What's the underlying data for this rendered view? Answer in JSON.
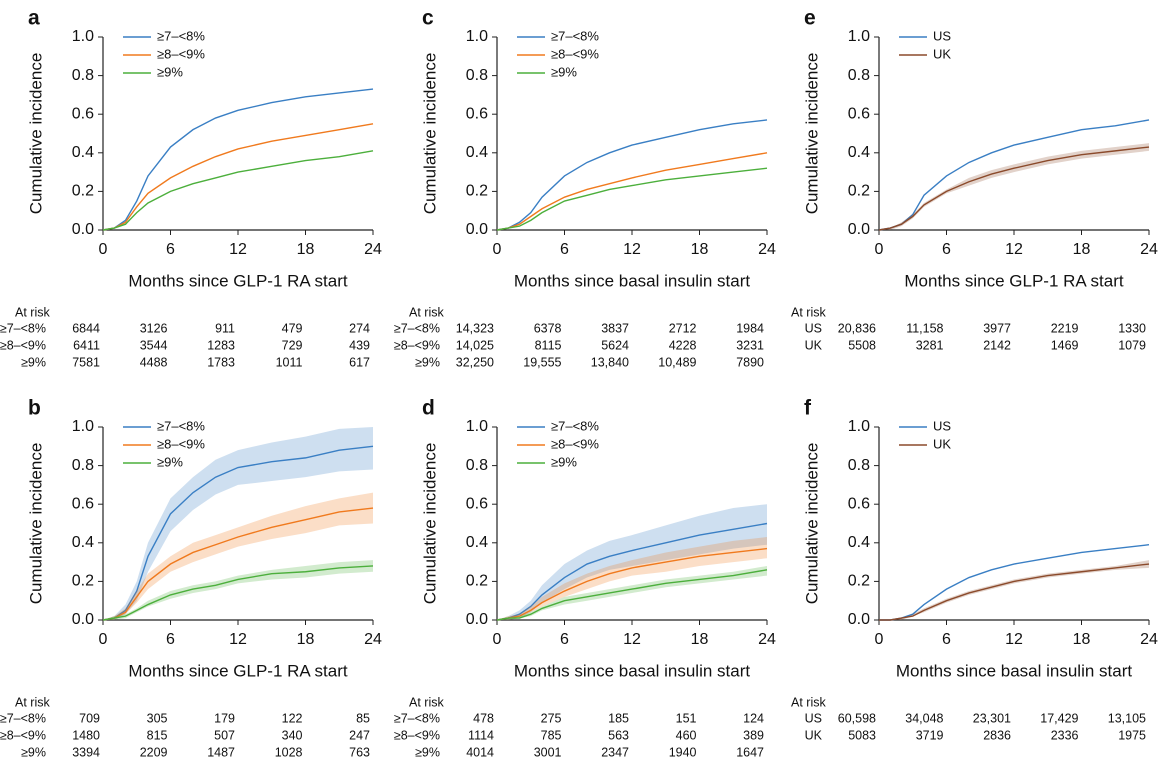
{
  "chart_data": [
    {
      "type": "line",
      "panel_label": "a",
      "ylabel": "Cumulative incidence",
      "xlabel": "Months since GLP-1 RA start",
      "x": [
        0,
        1,
        2,
        3,
        4,
        6,
        8,
        10,
        12,
        15,
        18,
        21,
        24
      ],
      "xlim": [
        0,
        24
      ],
      "ylim": [
        0,
        1
      ],
      "xticks": [
        0,
        6,
        12,
        18,
        24
      ],
      "yticks": [
        {
          "value": 0,
          "label": "0.0"
        },
        0.2,
        0.4,
        0.6,
        0.8,
        {
          "value": 1,
          "label": "1.0"
        }
      ],
      "series": [
        {
          "name": "≥7–<8%",
          "color": "#3a7fc4",
          "values": [
            0,
            0.01,
            0.05,
            0.15,
            0.28,
            0.43,
            0.52,
            0.58,
            0.62,
            0.66,
            0.69,
            0.71,
            0.73
          ]
        },
        {
          "name": "≥8–<9%",
          "color": "#f07a1e",
          "values": [
            0,
            0.01,
            0.04,
            0.12,
            0.19,
            0.27,
            0.33,
            0.38,
            0.42,
            0.46,
            0.49,
            0.52,
            0.55
          ]
        },
        {
          "name": "≥9%",
          "color": "#4caf3c",
          "values": [
            0,
            0.01,
            0.03,
            0.09,
            0.14,
            0.2,
            0.24,
            0.27,
            0.3,
            0.33,
            0.36,
            0.38,
            0.41
          ]
        }
      ],
      "at_risk": {
        "label": "At risk",
        "rows": [
          {
            "name": "≥7–<8%",
            "values": [
              "6844",
              "3126",
              "911",
              "479",
              "274"
            ]
          },
          {
            "name": "≥8–<9%",
            "values": [
              "6411",
              "3544",
              "1283",
              "729",
              "439"
            ]
          },
          {
            "name": "≥9%",
            "values": [
              "7581",
              "4488",
              "1783",
              "1011",
              "617"
            ]
          }
        ]
      }
    },
    {
      "type": "line",
      "panel_label": "c",
      "ylabel": "Cumulative incidence",
      "xlabel": "Months since basal insulin start",
      "x": [
        0,
        1,
        2,
        3,
        4,
        6,
        8,
        10,
        12,
        15,
        18,
        21,
        24
      ],
      "xlim": [
        0,
        24
      ],
      "ylim": [
        0,
        1
      ],
      "xticks": [
        0,
        6,
        12,
        18,
        24
      ],
      "yticks": [
        {
          "value": 0,
          "label": "0.0"
        },
        0.2,
        0.4,
        0.6,
        0.8,
        {
          "value": 1,
          "label": "1.0"
        }
      ],
      "series": [
        {
          "name": "≥7–<8%",
          "color": "#3a7fc4",
          "values": [
            0,
            0.01,
            0.04,
            0.09,
            0.17,
            0.28,
            0.35,
            0.4,
            0.44,
            0.48,
            0.52,
            0.55,
            0.57
          ]
        },
        {
          "name": "≥8–<9%",
          "color": "#f07a1e",
          "values": [
            0,
            0.01,
            0.03,
            0.07,
            0.11,
            0.17,
            0.21,
            0.24,
            0.27,
            0.31,
            0.34,
            0.37,
            0.4
          ]
        },
        {
          "name": "≥9%",
          "color": "#4caf3c",
          "values": [
            0,
            0.01,
            0.02,
            0.05,
            0.09,
            0.15,
            0.18,
            0.21,
            0.23,
            0.26,
            0.28,
            0.3,
            0.32
          ]
        }
      ],
      "at_risk": {
        "label": "At risk",
        "rows": [
          {
            "name": "≥7–<8%",
            "values": [
              "14,323",
              "6378",
              "3837",
              "2712",
              "1984"
            ]
          },
          {
            "name": "≥8–<9%",
            "values": [
              "14,025",
              "8115",
              "5624",
              "4228",
              "3231"
            ]
          },
          {
            "name": "≥9%",
            "values": [
              "32,250",
              "19,555",
              "13,840",
              "10,489",
              "7890"
            ]
          }
        ]
      }
    },
    {
      "type": "line",
      "panel_label": "e",
      "ylabel": "Cumulative incidence",
      "xlabel": "Months since GLP-1 RA start",
      "x": [
        0,
        1,
        2,
        3,
        4,
        6,
        8,
        10,
        12,
        15,
        18,
        21,
        24
      ],
      "xlim": [
        0,
        24
      ],
      "ylim": [
        0,
        1
      ],
      "xticks": [
        0,
        6,
        12,
        18,
        24
      ],
      "yticks": [
        {
          "value": 0,
          "label": "0.0"
        },
        0.2,
        0.4,
        0.6,
        0.8,
        {
          "value": 1,
          "label": "1.0"
        }
      ],
      "series": [
        {
          "name": "US",
          "color": "#3a7fc4",
          "values": [
            0,
            0.01,
            0.03,
            0.08,
            0.18,
            0.28,
            0.35,
            0.4,
            0.44,
            0.48,
            0.52,
            0.54,
            0.57
          ]
        },
        {
          "name": "UK",
          "color": "#8b4a2b",
          "values": [
            0,
            0.01,
            0.03,
            0.07,
            0.13,
            0.2,
            0.25,
            0.29,
            0.32,
            0.36,
            0.39,
            0.41,
            0.43
          ],
          "lower": [
            0,
            0,
            0.02,
            0.06,
            0.12,
            0.19,
            0.23,
            0.27,
            0.3,
            0.34,
            0.37,
            0.39,
            0.41
          ],
          "upper": [
            0,
            0.01,
            0.04,
            0.08,
            0.14,
            0.21,
            0.27,
            0.31,
            0.34,
            0.38,
            0.41,
            0.43,
            0.45
          ]
        }
      ],
      "at_risk": {
        "label": "At risk",
        "rows": [
          {
            "name": "US",
            "values": [
              "20,836",
              "11,158",
              "3977",
              "2219",
              "1330"
            ]
          },
          {
            "name": "UK",
            "values": [
              "5508",
              "3281",
              "2142",
              "1469",
              "1079"
            ]
          }
        ]
      }
    },
    {
      "type": "line",
      "panel_label": "b",
      "ylabel": "Cumulative incidence",
      "xlabel": "Months since GLP-1 RA start",
      "x": [
        0,
        1,
        2,
        3,
        4,
        6,
        8,
        10,
        12,
        15,
        18,
        21,
        24
      ],
      "xlim": [
        0,
        24
      ],
      "ylim": [
        0,
        1
      ],
      "xticks": [
        0,
        6,
        12,
        18,
        24
      ],
      "yticks": [
        {
          "value": 0,
          "label": "0.0"
        },
        0.2,
        0.4,
        0.6,
        0.8,
        {
          "value": 1,
          "label": "1.0"
        }
      ],
      "series": [
        {
          "name": "≥7–<8%",
          "color": "#3a7fc4",
          "values": [
            0,
            0.01,
            0.05,
            0.15,
            0.33,
            0.55,
            0.66,
            0.74,
            0.79,
            0.82,
            0.84,
            0.88,
            0.9
          ],
          "lower": [
            0,
            0,
            0.03,
            0.1,
            0.25,
            0.46,
            0.57,
            0.65,
            0.7,
            0.72,
            0.74,
            0.77,
            0.78
          ],
          "upper": [
            0,
            0.02,
            0.08,
            0.2,
            0.4,
            0.63,
            0.74,
            0.83,
            0.88,
            0.92,
            0.95,
            0.99,
            1.0
          ]
        },
        {
          "name": "≥8–<9%",
          "color": "#f07a1e",
          "values": [
            0,
            0.01,
            0.04,
            0.12,
            0.2,
            0.29,
            0.35,
            0.39,
            0.43,
            0.48,
            0.52,
            0.56,
            0.58
          ],
          "lower": [
            0,
            0,
            0.03,
            0.09,
            0.16,
            0.25,
            0.3,
            0.34,
            0.38,
            0.42,
            0.45,
            0.49,
            0.5
          ],
          "upper": [
            0,
            0.02,
            0.06,
            0.15,
            0.24,
            0.33,
            0.4,
            0.44,
            0.48,
            0.54,
            0.59,
            0.63,
            0.66
          ]
        },
        {
          "name": "≥9%",
          "color": "#4caf3c",
          "values": [
            0,
            0.01,
            0.02,
            0.05,
            0.08,
            0.13,
            0.16,
            0.18,
            0.21,
            0.24,
            0.25,
            0.27,
            0.28
          ],
          "lower": [
            0,
            0,
            0.01,
            0.04,
            0.07,
            0.11,
            0.14,
            0.16,
            0.19,
            0.21,
            0.22,
            0.24,
            0.25
          ],
          "upper": [
            0,
            0.02,
            0.03,
            0.06,
            0.1,
            0.15,
            0.18,
            0.2,
            0.23,
            0.26,
            0.28,
            0.3,
            0.31
          ]
        }
      ],
      "at_risk": {
        "label": "At risk",
        "rows": [
          {
            "name": "≥7–<8%",
            "values": [
              "709",
              "305",
              "179",
              "122",
              "85"
            ]
          },
          {
            "name": "≥8–<9%",
            "values": [
              "1480",
              "815",
              "507",
              "340",
              "247"
            ]
          },
          {
            "name": "≥9%",
            "values": [
              "3394",
              "2209",
              "1487",
              "1028",
              "763"
            ]
          }
        ]
      }
    },
    {
      "type": "line",
      "panel_label": "d",
      "ylabel": "Cumulative incidence",
      "xlabel": "Months since basal insulin start",
      "x": [
        0,
        1,
        2,
        3,
        4,
        6,
        8,
        10,
        12,
        15,
        18,
        21,
        24
      ],
      "xlim": [
        0,
        24
      ],
      "ylim": [
        0,
        1
      ],
      "xticks": [
        0,
        6,
        12,
        18,
        24
      ],
      "yticks": [
        {
          "value": 0,
          "label": "0.0"
        },
        0.2,
        0.4,
        0.6,
        0.8,
        {
          "value": 1,
          "label": "1.0"
        }
      ],
      "series": [
        {
          "name": "≥7–<8%",
          "color": "#3a7fc4",
          "values": [
            0,
            0.01,
            0.03,
            0.07,
            0.13,
            0.22,
            0.29,
            0.33,
            0.36,
            0.4,
            0.44,
            0.47,
            0.5
          ],
          "lower": [
            0,
            0,
            0.01,
            0.04,
            0.09,
            0.16,
            0.22,
            0.26,
            0.28,
            0.31,
            0.34,
            0.37,
            0.39
          ],
          "upper": [
            0,
            0.02,
            0.05,
            0.1,
            0.18,
            0.29,
            0.36,
            0.41,
            0.44,
            0.49,
            0.54,
            0.58,
            0.6
          ]
        },
        {
          "name": "≥8–<9%",
          "color": "#f07a1e",
          "values": [
            0,
            0.01,
            0.02,
            0.05,
            0.09,
            0.15,
            0.2,
            0.24,
            0.27,
            0.3,
            0.33,
            0.35,
            0.37
          ],
          "lower": [
            0,
            0,
            0.01,
            0.04,
            0.07,
            0.12,
            0.16,
            0.2,
            0.23,
            0.25,
            0.28,
            0.3,
            0.32
          ],
          "upper": [
            0,
            0.02,
            0.03,
            0.07,
            0.12,
            0.19,
            0.24,
            0.28,
            0.31,
            0.35,
            0.38,
            0.41,
            0.43
          ]
        },
        {
          "name": "≥9%",
          "color": "#4caf3c",
          "values": [
            0,
            0.01,
            0.01,
            0.03,
            0.06,
            0.1,
            0.12,
            0.14,
            0.16,
            0.19,
            0.21,
            0.23,
            0.26
          ],
          "lower": [
            0,
            0,
            0.01,
            0.02,
            0.05,
            0.08,
            0.1,
            0.12,
            0.14,
            0.17,
            0.19,
            0.21,
            0.23
          ],
          "upper": [
            0,
            0.01,
            0.02,
            0.04,
            0.07,
            0.12,
            0.14,
            0.16,
            0.18,
            0.21,
            0.23,
            0.25,
            0.28
          ]
        }
      ],
      "at_risk": {
        "label": "At risk",
        "rows": [
          {
            "name": "≥7–<8%",
            "values": [
              "478",
              "275",
              "185",
              "151",
              "124"
            ]
          },
          {
            "name": "≥8–<9%",
            "values": [
              "1114",
              "785",
              "563",
              "460",
              "389"
            ]
          },
          {
            "name": "≥9%",
            "values": [
              "4014",
              "3001",
              "2347",
              "1940",
              "1647"
            ]
          }
        ]
      }
    },
    {
      "type": "line",
      "panel_label": "f",
      "ylabel": "Cumulative incidence",
      "xlabel": "Months since basal insulin start",
      "x": [
        0,
        1,
        2,
        3,
        4,
        6,
        8,
        10,
        12,
        15,
        18,
        21,
        24
      ],
      "xlim": [
        0,
        24
      ],
      "ylim": [
        0,
        1
      ],
      "xticks": [
        0,
        6,
        12,
        18,
        24
      ],
      "yticks": [
        {
          "value": 0,
          "label": "0.0"
        },
        0.2,
        0.4,
        0.6,
        0.8,
        {
          "value": 1,
          "label": "1.0"
        }
      ],
      "series": [
        {
          "name": "US",
          "color": "#3a7fc4",
          "values": [
            0,
            0,
            0.01,
            0.03,
            0.08,
            0.16,
            0.22,
            0.26,
            0.29,
            0.32,
            0.35,
            0.37,
            0.39
          ]
        },
        {
          "name": "UK",
          "color": "#8b4a2b",
          "values": [
            0,
            0,
            0.01,
            0.02,
            0.05,
            0.1,
            0.14,
            0.17,
            0.2,
            0.23,
            0.25,
            0.27,
            0.29
          ],
          "lower": [
            0,
            0,
            0,
            0.02,
            0.04,
            0.09,
            0.13,
            0.16,
            0.19,
            0.22,
            0.24,
            0.26,
            0.27
          ],
          "upper": [
            0,
            0,
            0.01,
            0.03,
            0.06,
            0.11,
            0.15,
            0.18,
            0.21,
            0.24,
            0.26,
            0.28,
            0.31
          ]
        }
      ],
      "at_risk": {
        "label": "At risk",
        "rows": [
          {
            "name": "US",
            "values": [
              "60,598",
              "34,048",
              "23,301",
              "17,429",
              "13,105"
            ]
          },
          {
            "name": "UK",
            "values": [
              "5083",
              "3719",
              "2836",
              "2336",
              "1975"
            ]
          }
        ]
      }
    }
  ]
}
